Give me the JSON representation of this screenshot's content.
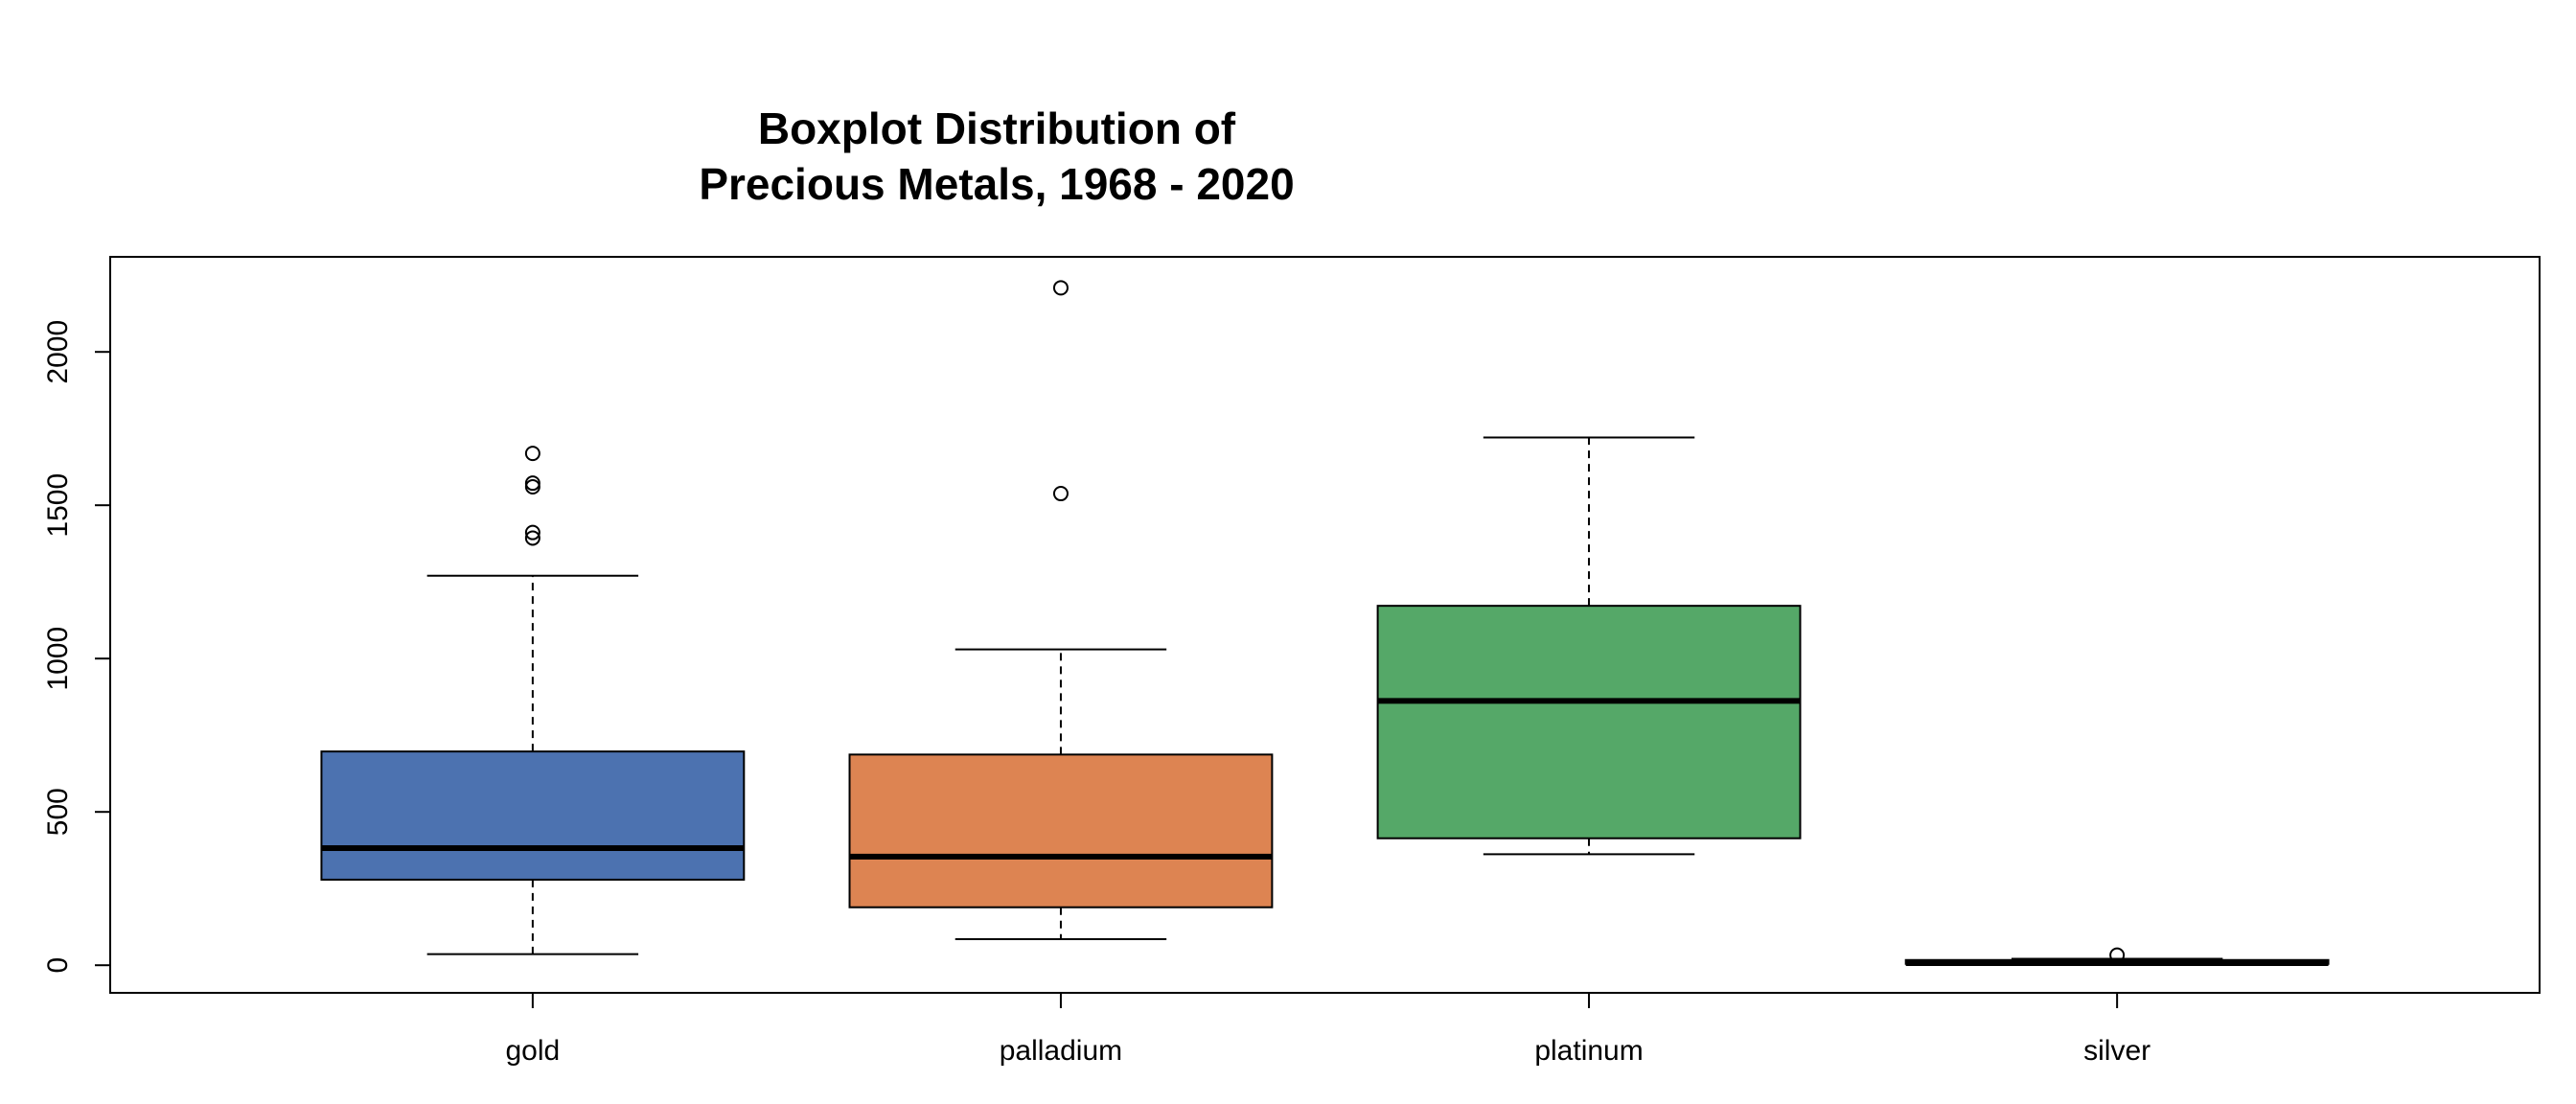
{
  "chart_data": {
    "type": "boxplot",
    "title": [
      "Boxplot Distribution of",
      "Precious Metals, 1968 - 2020"
    ],
    "xlabel": "",
    "ylabel": "",
    "ylim": [
      -90,
      2310
    ],
    "yticks": [
      0,
      500,
      1000,
      1500,
      2000
    ],
    "grid": false,
    "legend": "none",
    "categories": [
      "gold",
      "palladium",
      "platinum",
      "silver"
    ],
    "colors": [
      "#4c72b0",
      "#dd8452",
      "#55a868",
      "#c44e52"
    ],
    "boxes": [
      {
        "category": "gold",
        "whisker_low": 36,
        "q1": 279,
        "median": 382,
        "q3": 697,
        "whisker_high": 1270,
        "outliers": [
          1393,
          1411,
          1560,
          1572,
          1669
        ]
      },
      {
        "category": "palladium",
        "whisker_low": 85,
        "q1": 189,
        "median": 354,
        "q3": 687,
        "whisker_high": 1030,
        "outliers": [
          1538,
          2209
        ]
      },
      {
        "category": "platinum",
        "whisker_low": 362,
        "q1": 414,
        "median": 862,
        "q3": 1172,
        "whisker_high": 1721,
        "outliers": []
      },
      {
        "category": "silver",
        "whisker_low": 1.8,
        "q1": 4.5,
        "median": 7,
        "q3": 17,
        "whisker_high": 21,
        "outliers": [
          33
        ]
      }
    ]
  }
}
